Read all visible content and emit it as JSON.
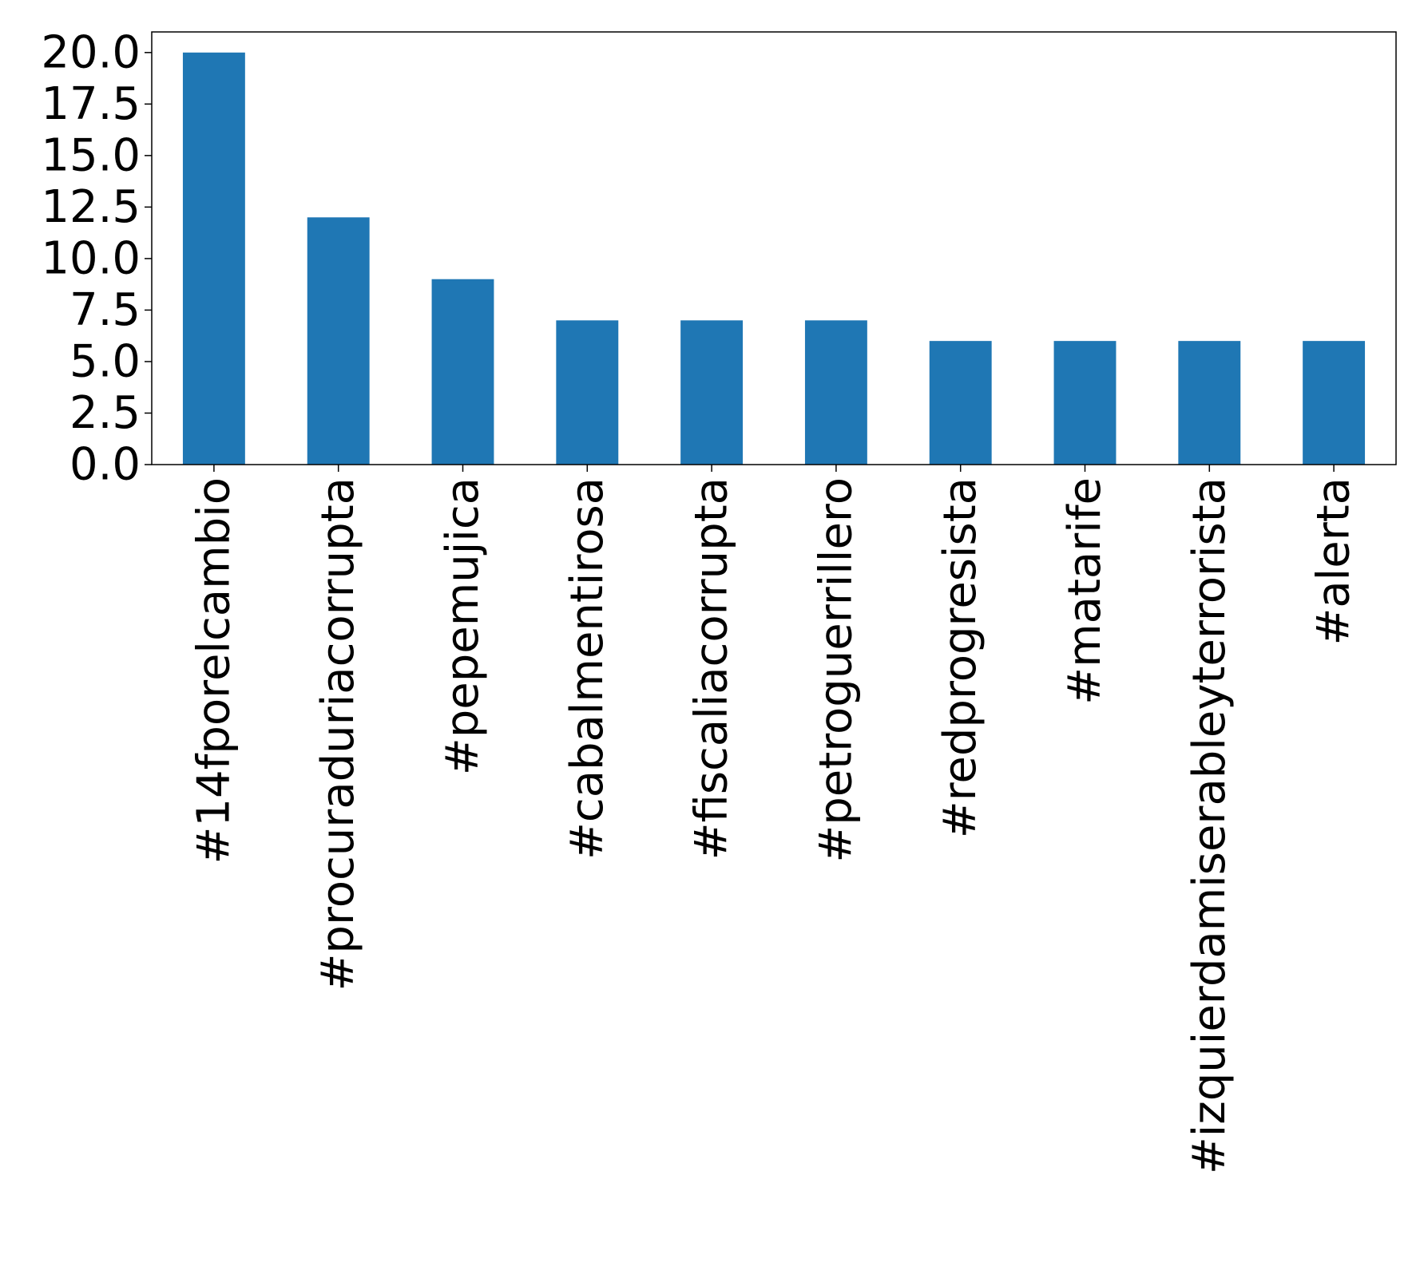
{
  "chart_data": {
    "type": "bar",
    "categories": [
      "#14fporelcambio",
      "#procuraduriacorrupta",
      "#pepemujica",
      "#cabalmentirosa",
      "#fiscaliacorrupta",
      "#petroguerrillero",
      "#redprogresista",
      "#matarife",
      "#izquierdamiserableyterrorista",
      "#alerta"
    ],
    "values": [
      20,
      12,
      9,
      7,
      7,
      7,
      6,
      6,
      6,
      6
    ],
    "title": "",
    "xlabel": "",
    "ylabel": "",
    "ylim": [
      0,
      21
    ],
    "yticks": [
      0.0,
      2.5,
      5.0,
      7.5,
      10.0,
      12.5,
      15.0,
      17.5,
      20.0
    ],
    "ytick_labels": [
      "0.0",
      "2.5",
      "5.0",
      "7.5",
      "10.0",
      "12.5",
      "15.0",
      "17.5",
      "20.0"
    ],
    "grid": false,
    "legend": "none",
    "bar_color": "#1f77b4",
    "axis_color": "#000000"
  }
}
